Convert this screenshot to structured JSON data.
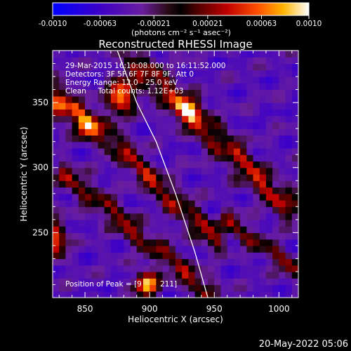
{
  "chart_data": {
    "type": "heatmap",
    "title": "Reconstructed RHESSI Image",
    "xlabel": "Heliocentric X (arcsec)",
    "ylabel": "Heliocentric Y (arcsec)",
    "xlim": [
      825,
      1015
    ],
    "ylim": [
      200,
      390
    ],
    "xticks": [
      850,
      900,
      950,
      1000
    ],
    "yticks": [
      250,
      300,
      350
    ],
    "colorbar": {
      "ticks": [
        -0.001,
        -0.00063,
        -0.00021,
        0.00021,
        0.00063,
        0.001
      ],
      "tick_labels": [
        "-0.0010",
        "-0.00063",
        "-0.00021",
        "0.00021",
        "0.00063",
        "0.0010"
      ],
      "unit_label": "(photons cm⁻² s⁻¹ asec⁻²)",
      "range": [
        -0.001,
        0.001
      ]
    },
    "annotations": [
      "29-Mar-2015 16:10:08.000 to 16:11:52.000",
      "Detectors: 3F 5F 6F 7F 8F 9F, Att 0",
      "Energy Range: 12.0 - 25.0 keV",
      "Clean     Total counts: 1.12E+03"
    ],
    "peak_label": "Position of Peak = [9",
    "peak_label_tail": "211]",
    "peak_position": [
      898,
      211
    ],
    "limb_curve": [
      [
        875,
        390
      ],
      [
        890,
        350
      ],
      [
        905,
        320
      ],
      [
        920,
        280
      ],
      [
        935,
        235
      ],
      [
        945,
        200
      ]
    ],
    "bright_features": [
      {
        "x": 878,
        "y": 355,
        "sx": 7,
        "sy": 9,
        "v": 0.9
      },
      {
        "x": 898,
        "y": 211,
        "sx": 6,
        "sy": 6,
        "v": 1.0
      },
      {
        "x": 830,
        "y": 350,
        "sx": 6,
        "sy": 9,
        "v": 0.7
      },
      {
        "x": 828,
        "y": 245,
        "sx": 5,
        "sy": 10,
        "v": 0.65
      },
      {
        "x": 850,
        "y": 332,
        "sx": 6,
        "sy": 6,
        "v": 0.55
      },
      {
        "x": 930,
        "y": 345,
        "sx": 7,
        "sy": 6,
        "v": 0.5
      }
    ],
    "ridges": [
      {
        "x0": 890,
        "y0": 380,
        "x1": 1010,
        "y1": 268,
        "width": 7,
        "v": 0.6
      },
      {
        "x0": 845,
        "y0": 345,
        "x1": 950,
        "y1": 245,
        "width": 6,
        "v": 0.55
      },
      {
        "x0": 835,
        "y0": 295,
        "x1": 945,
        "y1": 205,
        "width": 6,
        "v": 0.45
      },
      {
        "x0": 960,
        "y0": 260,
        "x1": 1012,
        "y1": 222,
        "width": 5,
        "v": 0.4
      }
    ]
  },
  "footer": {
    "date": "20-May-2022 05:06"
  }
}
